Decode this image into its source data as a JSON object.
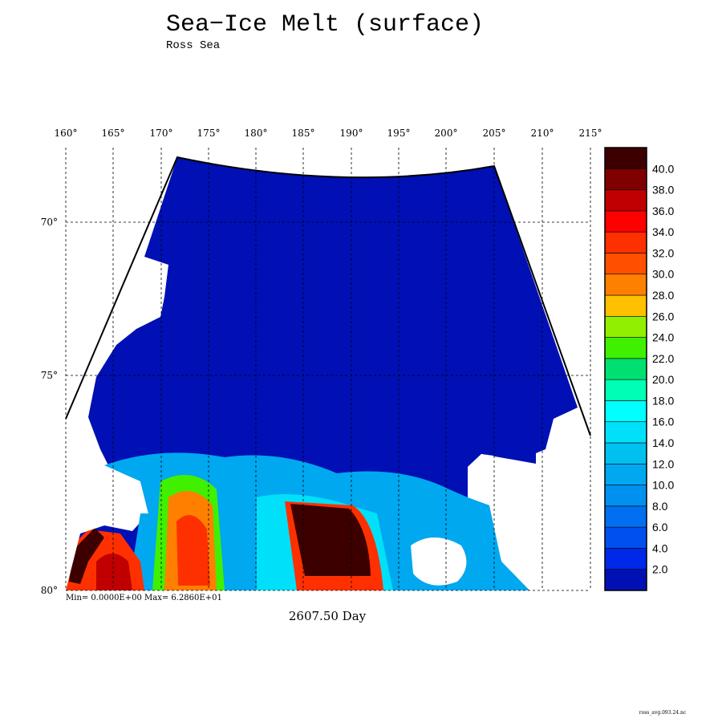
{
  "title": "Sea−Ice Melt (surface)",
  "subtitle": "Ross Sea",
  "longitude_labels": [
    "160°",
    "165°",
    "170°",
    "175°",
    "180°",
    "185°",
    "190°",
    "195°",
    "200°",
    "205°",
    "210°",
    "215°"
  ],
  "latitude_labels": [
    "70°",
    "75°",
    "80°"
  ],
  "colorbar": {
    "labels": [
      "2.0",
      "4.0",
      "6.0",
      "8.0",
      "10.0",
      "12.0",
      "14.0",
      "16.0",
      "18.0",
      "20.0",
      "22.0",
      "24.0",
      "26.0",
      "28.0",
      "30.0",
      "32.0",
      "34.0",
      "36.0",
      "38.0",
      "40.0"
    ],
    "colors": [
      "#0010b4",
      "#0028e8",
      "#0050f0",
      "#0070f0",
      "#0090f0",
      "#00a8f0",
      "#00c0f0",
      "#00e0f8",
      "#00ffff",
      "#00ffb4",
      "#00e070",
      "#40f000",
      "#90f000",
      "#ffc000",
      "#ff8000",
      "#ff5000",
      "#ff3000",
      "#ff0000",
      "#c00000",
      "#800000",
      "#3c0000"
    ]
  },
  "stats": "Min= 0.0000E+00   Max= 6.2860E+01",
  "time_label": "2607.50 Day",
  "footer": "ross_avg.093.24.nc"
}
